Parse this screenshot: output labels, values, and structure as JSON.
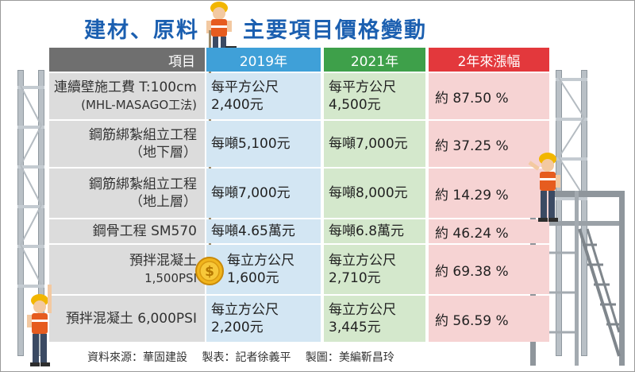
{
  "title": {
    "part1": "建材、原料",
    "part2": "主要項目價格變動"
  },
  "table": {
    "headers": {
      "item": "項目",
      "y2019": "2019年",
      "y2021": "2021年",
      "rise": "2年來漲幅"
    },
    "rows": [
      {
        "item_line1": "連續壁施工費 T:100cm",
        "item_line2": "(MHL-MASAGO工法)",
        "v2019_line1": "每平方公尺",
        "v2019_line2": "2,400元",
        "v2021_line1": "每平方公尺",
        "v2021_line2": "4,500元",
        "rise": "約 87.50 %"
      },
      {
        "item_line1": "鋼筋綁紮組立工程",
        "item_line2": "（地下層）",
        "v2019_line1": "每噸5,100元",
        "v2019_line2": "",
        "v2021_line1": "每噸7,000元",
        "v2021_line2": "",
        "rise": "約 37.25 %"
      },
      {
        "item_line1": "鋼筋綁紮組立工程",
        "item_line2": "（地上層）",
        "v2019_line1": "每噸7,000元",
        "v2019_line2": "",
        "v2021_line1": "每噸8,000元",
        "v2021_line2": "",
        "rise": "約 14.29 %"
      },
      {
        "item_line1": "鋼骨工程 SM570",
        "item_line2": "",
        "v2019_line1": "每噸4.65萬元",
        "v2019_line2": "",
        "v2021_line1": "每噸6.8萬元",
        "v2021_line2": "",
        "rise": "約 46.24 %"
      },
      {
        "item_line1": "預拌混凝土",
        "item_line2": "1,500PSI",
        "v2019_line1": "每立方公尺",
        "v2019_line2": "1,600元",
        "v2021_line1": "每立方公尺",
        "v2021_line2": "2,710元",
        "rise": "約 69.38 %"
      },
      {
        "item_line1": "預拌混凝土 6,000PSI",
        "item_line2": "",
        "v2019_line1": "每立方公尺",
        "v2019_line2": "2,200元",
        "v2021_line1": "每立方公尺",
        "v2021_line2": "3,445元",
        "rise": "約 56.59 %"
      }
    ]
  },
  "source": {
    "data": "資料來源：華固建設",
    "table": "製表：記者徐義平",
    "graphic": "製圖：美編靳昌玲"
  },
  "coin_symbol": "$",
  "colors": {
    "title": "#1b5fb0",
    "header_item": "#6f6f6f",
    "header_2019": "#3fa0d8",
    "header_2021": "#3ea04a",
    "header_rise": "#e3383c",
    "cell_item": "#dcdcdc",
    "cell_2019": "#d3e6f3",
    "cell_2021": "#d4e8cc",
    "cell_rise": "#f6d3d3"
  }
}
